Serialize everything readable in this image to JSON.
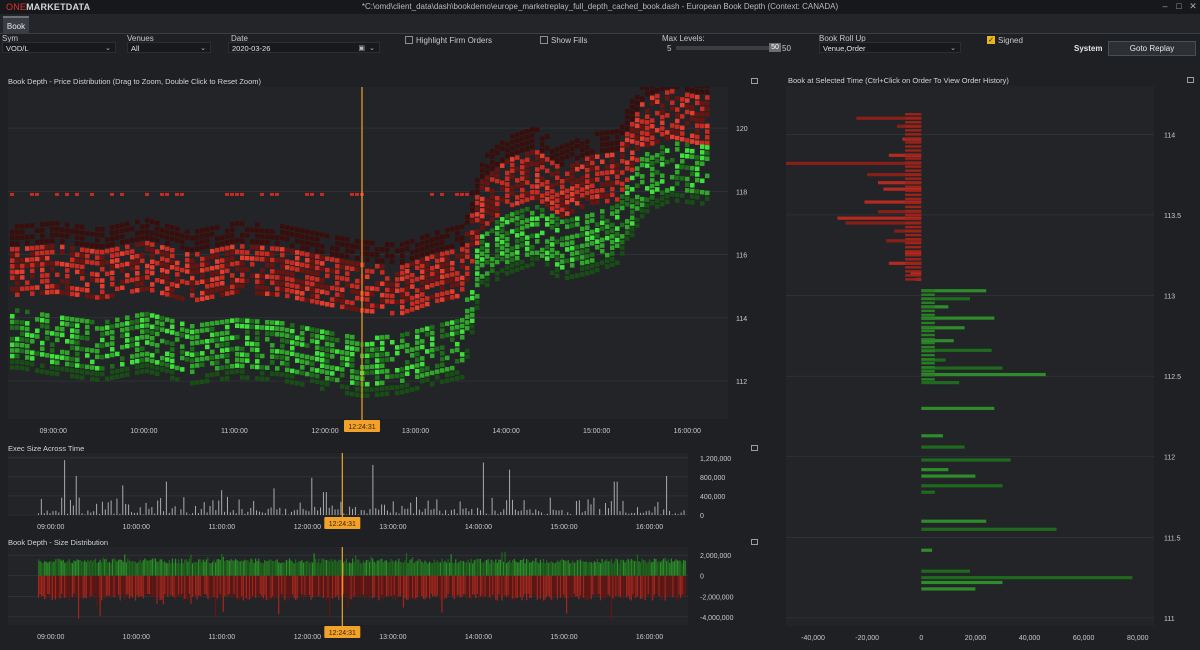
{
  "app": {
    "logo_one": "ONE",
    "logo_rest": "MARKETDATA",
    "window_title": "*C:\\omd\\client_data\\dash\\bookdemo\\europe_marketreplay_full_depth_cached_book.dash - European Book Depth (Context: CANADA)",
    "window_buttons": [
      "–",
      "□",
      "✕"
    ]
  },
  "tabs": [
    {
      "label": "Book",
      "active": true
    }
  ],
  "controls": {
    "sym_label": "Sym",
    "sym_value": "VOD/L",
    "venues_label": "Venues",
    "venues_value": "All",
    "date_label": "Date",
    "date_value": "2020-03-26",
    "highlight_firm_orders": "Highlight Firm Orders",
    "show_fills": "Show Fills",
    "max_levels_label": "Max Levels:",
    "max_levels_min": "5",
    "max_levels_value": "50",
    "max_levels_max": "50",
    "rollup_label": "Book Roll Up",
    "rollup_value": "Venue,Order",
    "signed_label": "Signed",
    "signed_checked": true,
    "system_label": "System",
    "goto_replay": "Goto Replay"
  },
  "panels": {
    "price_dist_title": "Book Depth - Price Distribution (Drag to Zoom, Double Click to Reset Zoom)",
    "exec_size_title": "Exec Size Across Time",
    "size_dist_title": "Book Depth - Size Distribution",
    "book_at_time_title": "Book at Selected Time (Ctrl+Click on Order To View Order History)"
  },
  "selected_time": "12:24:31",
  "colors": {
    "ask": "#c92a1f",
    "ask_dark": "#6a1410",
    "bid": "#2fa52a",
    "bid_bright": "#3de13a",
    "marker": "#f2a22a",
    "bg": "#1e2024",
    "plot_bg": "#222428",
    "grid": "#34373c"
  },
  "chart_data": [
    {
      "type": "heatmap",
      "title": "Book Depth - Price Distribution (Drag to Zoom, Double Click to Reset Zoom)",
      "x_ticks": [
        "09:00:00",
        "10:00:00",
        "11:00:00",
        "12:00:00",
        "13:00:00",
        "14:00:00",
        "15:00:00",
        "16:00:00"
      ],
      "y_ticks": [
        112,
        114,
        116,
        118,
        120
      ],
      "ylim": [
        110.8,
        121.3
      ],
      "x_range_hours": [
        8.5,
        16.45
      ],
      "series": [
        {
          "name": "ask",
          "x": [
            8.6,
            9,
            9.5,
            10,
            10.5,
            11,
            11.5,
            12,
            12.4,
            12.8,
            13.2,
            13.5,
            13.7,
            14,
            14.3,
            14.6,
            14.9,
            15.2,
            15.5,
            15.8,
            16.1,
            16.35
          ],
          "values": [
            115.5,
            115.6,
            115.4,
            115.7,
            115.3,
            115.6,
            115.5,
            115.2,
            115.0,
            114.9,
            115.3,
            115.5,
            117.6,
            118.3,
            118.6,
            118.0,
            118.4,
            118.5,
            120.2,
            120.5,
            120.3,
            120.3
          ]
        },
        {
          "name": "bid",
          "x": [
            8.6,
            9,
            9.5,
            10,
            10.5,
            11,
            11.5,
            12,
            12.4,
            12.8,
            13.2,
            13.5,
            13.7,
            14,
            14.3,
            14.6,
            14.9,
            15.2,
            15.5,
            15.8,
            16.1,
            16.35
          ],
          "values": [
            113.7,
            113.5,
            113.3,
            113.6,
            113.2,
            113.4,
            113.3,
            113.0,
            112.8,
            112.9,
            113.2,
            113.4,
            116.2,
            116.7,
            117.0,
            116.5,
            116.7,
            117.0,
            118.6,
            119.0,
            118.9,
            118.8
          ]
        }
      ],
      "marker_time": "12:24:31"
    },
    {
      "type": "bar",
      "title": "Exec Size Across Time",
      "x_ticks": [
        "09:00:00",
        "10:00:00",
        "11:00:00",
        "12:00:00",
        "13:00:00",
        "14:00:00",
        "15:00:00",
        "16:00:00"
      ],
      "y_ticks": [
        "1,200,000",
        "800,000",
        "400,000",
        "0"
      ],
      "ylim": [
        0,
        1300000
      ],
      "bursts": [
        {
          "x": 9.15,
          "value": 1150000
        },
        {
          "x": 9.3,
          "value": 820000
        },
        {
          "x": 9.85,
          "value": 620000
        },
        {
          "x": 10.35,
          "value": 700000
        },
        {
          "x": 11.0,
          "value": 520000
        },
        {
          "x": 11.6,
          "value": 560000
        },
        {
          "x": 12.05,
          "value": 780000
        },
        {
          "x": 12.2,
          "value": 480000
        },
        {
          "x": 12.75,
          "value": 1050000
        },
        {
          "x": 14.05,
          "value": 1100000
        },
        {
          "x": 14.35,
          "value": 950000
        },
        {
          "x": 15.6,
          "value": 700000
        },
        {
          "x": 16.2,
          "value": 820000
        }
      ],
      "baseline_max": 380000
    },
    {
      "type": "area",
      "title": "Book Depth - Size Distribution",
      "x_ticks": [
        "09:00:00",
        "10:00:00",
        "11:00:00",
        "12:00:00",
        "13:00:00",
        "14:00:00",
        "15:00:00",
        "16:00:00"
      ],
      "y_ticks": [
        "2,000,000",
        "0",
        "-2,000,000",
        "-4,000,000"
      ],
      "ylim": [
        -4800000,
        2800000
      ],
      "series": [
        {
          "name": "bid",
          "typical": 1600000,
          "max": 2400000
        },
        {
          "name": "ask",
          "typical": -2200000,
          "min": -4200000
        }
      ]
    },
    {
      "type": "bar",
      "orientation": "horizontal",
      "title": "Book at Selected Time (Ctrl+Click on Order To View Order History)",
      "x_ticks": [
        "-40,000",
        "-20,000",
        "0",
        "20,000",
        "40,000",
        "60,000",
        "80,000"
      ],
      "xlim": [
        -50000,
        86000
      ],
      "y_ticks": [
        "114",
        "113.5",
        "113",
        "112.5",
        "112",
        "111.5",
        "111"
      ],
      "ylim": [
        110.95,
        114.3
      ],
      "ask_levels": [
        {
          "price": 114.1,
          "size": -24000
        },
        {
          "price": 114.05,
          "size": -9000
        },
        {
          "price": 113.97,
          "size": -7000
        },
        {
          "price": 113.87,
          "size": -12000
        },
        {
          "price": 113.82,
          "size": -50000
        },
        {
          "price": 113.75,
          "size": -20000
        },
        {
          "price": 113.7,
          "size": -16000
        },
        {
          "price": 113.66,
          "size": -14000
        },
        {
          "price": 113.58,
          "size": -21000
        },
        {
          "price": 113.52,
          "size": -16000
        },
        {
          "price": 113.48,
          "size": -31000
        },
        {
          "price": 113.45,
          "size": -28000
        },
        {
          "price": 113.4,
          "size": -10000
        },
        {
          "price": 113.34,
          "size": -13000
        },
        {
          "price": 113.26,
          "size": -6000
        },
        {
          "price": 113.2,
          "size": -12000
        },
        {
          "price": 113.14,
          "size": -4000
        },
        {
          "price": 113.1,
          "size": -2000
        }
      ],
      "bid_levels": [
        {
          "price": 113.03,
          "size": 24000
        },
        {
          "price": 112.98,
          "size": 18000
        },
        {
          "price": 112.93,
          "size": 10000
        },
        {
          "price": 112.86,
          "size": 27000
        },
        {
          "price": 112.8,
          "size": 16000
        },
        {
          "price": 112.72,
          "size": 12000
        },
        {
          "price": 112.66,
          "size": 26000
        },
        {
          "price": 112.6,
          "size": 9000
        },
        {
          "price": 112.55,
          "size": 30000
        },
        {
          "price": 112.51,
          "size": 46000
        },
        {
          "price": 112.46,
          "size": 14000
        },
        {
          "price": 112.3,
          "size": 27000
        },
        {
          "price": 112.13,
          "size": 8000
        },
        {
          "price": 112.06,
          "size": 16000
        },
        {
          "price": 111.98,
          "size": 33000
        },
        {
          "price": 111.92,
          "size": 10000
        },
        {
          "price": 111.88,
          "size": 20000
        },
        {
          "price": 111.82,
          "size": 30000
        },
        {
          "price": 111.78,
          "size": 5000
        },
        {
          "price": 111.6,
          "size": 24000
        },
        {
          "price": 111.55,
          "size": 50000
        },
        {
          "price": 111.42,
          "size": 4000
        },
        {
          "price": 111.29,
          "size": 18000
        },
        {
          "price": 111.25,
          "size": 78000
        },
        {
          "price": 111.22,
          "size": 30000
        },
        {
          "price": 111.18,
          "size": 20000
        }
      ]
    }
  ]
}
